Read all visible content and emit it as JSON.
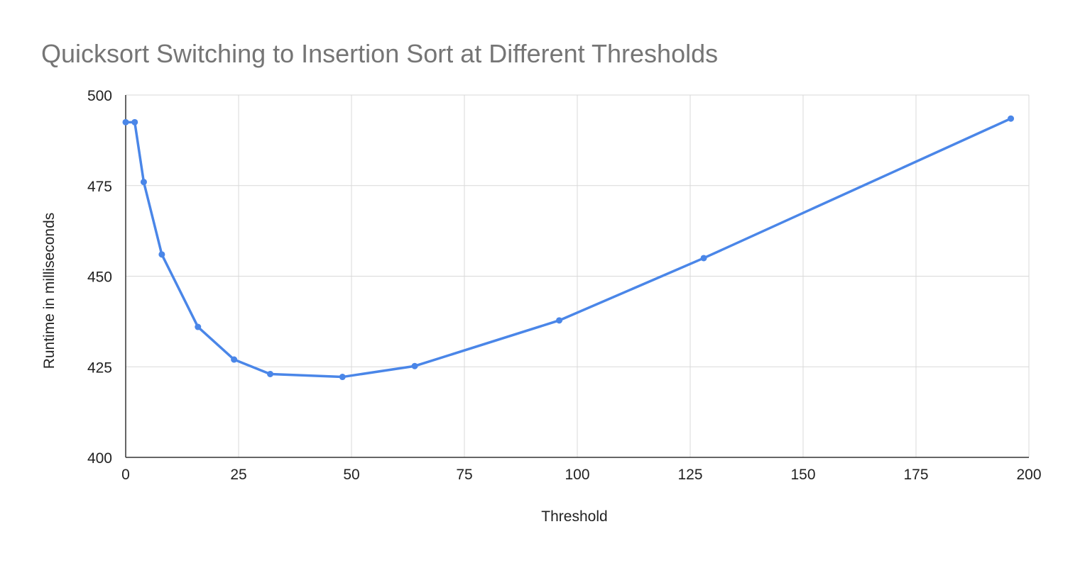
{
  "chart_data": {
    "type": "line",
    "title": "Quicksort Switching to Insertion Sort at Different Thresholds",
    "xlabel": "Threshold",
    "ylabel": "Runtime in milliseconds",
    "xlim": [
      0,
      200
    ],
    "ylim": [
      400,
      500
    ],
    "xticks": [
      0,
      25,
      50,
      75,
      100,
      125,
      150,
      175,
      200
    ],
    "yticks": [
      400,
      425,
      450,
      475,
      500
    ],
    "grid": true,
    "legend": "none",
    "colors": {
      "series": "#4a86e8",
      "title": "#757575",
      "grid": "#d9d9d9",
      "axis": "#333333",
      "text": "#222222"
    },
    "series": [
      {
        "x": [
          0,
          2,
          4,
          8,
          16,
          24,
          32,
          48,
          64,
          96,
          128,
          196
        ],
        "y": [
          492.5,
          492.5,
          476,
          456,
          436,
          427,
          423,
          422.2,
          425.2,
          437.8,
          455,
          493.5
        ]
      }
    ]
  }
}
